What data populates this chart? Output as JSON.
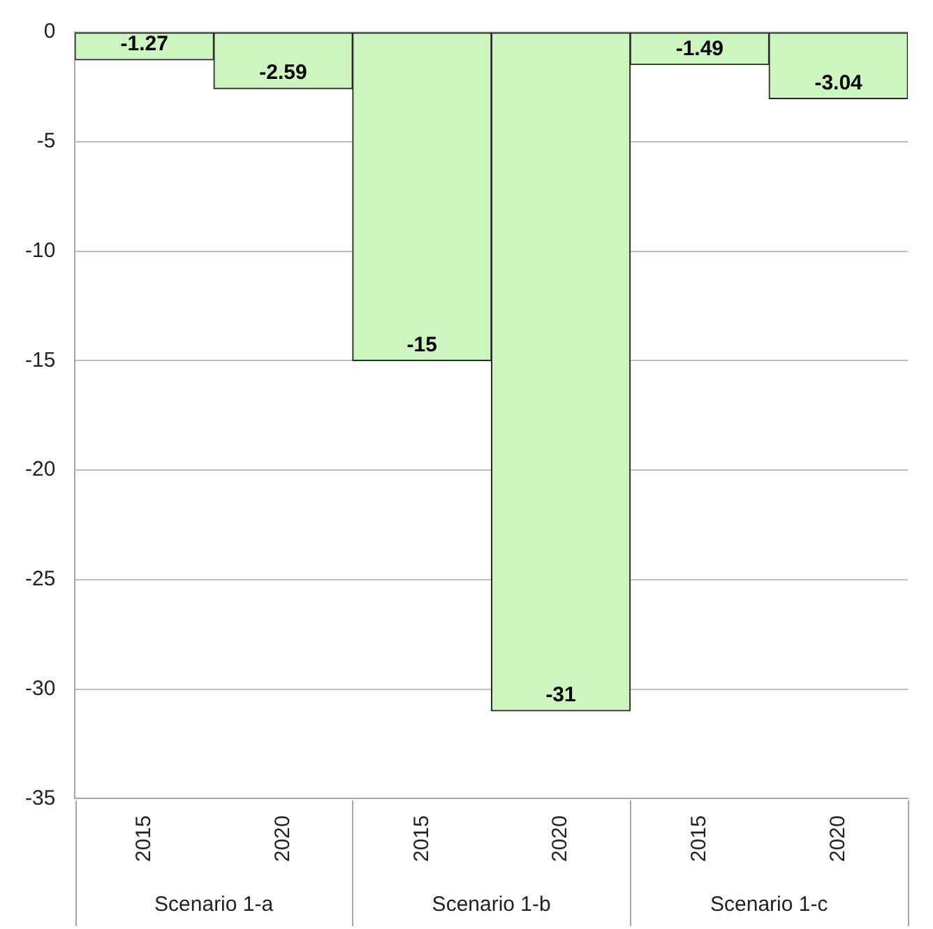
{
  "chart_data": {
    "type": "bar",
    "categories": [
      "2015",
      "2020",
      "2015",
      "2020",
      "2015",
      "2020"
    ],
    "values": [
      -1.27,
      -2.59,
      -15,
      -31,
      -1.49,
      -3.04
    ],
    "color": "#ccf5c0",
    "ylim": [
      -35,
      0
    ],
    "yticks": [
      0,
      -5,
      -10,
      -15,
      -20,
      -25,
      -30,
      -35
    ],
    "grid": "y",
    "legend": false,
    "data_labels": true,
    "annotations": [
      "Scenario 1-a",
      "Scenario 1-b",
      "Scenario 1-c"
    ]
  }
}
